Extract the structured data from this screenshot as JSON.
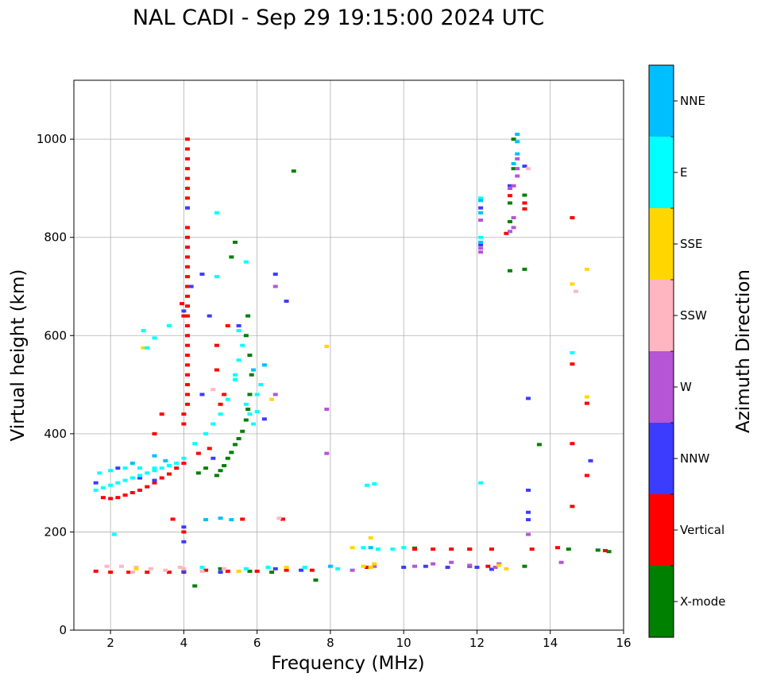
{
  "chart_data": {
    "type": "scatter",
    "title": "NAL CADI - Sep 29 19:15:00 2024 UTC",
    "xlabel": "Frequency (MHz)",
    "ylabel": "Virtual height (km)",
    "xlim": [
      1,
      16
    ],
    "ylim": [
      0,
      1120
    ],
    "xticks": [
      2,
      4,
      6,
      8,
      10,
      12,
      14,
      16
    ],
    "yticks": [
      0,
      200,
      400,
      600,
      800,
      1000
    ],
    "grid": true,
    "colorbar": {
      "label": "Azimuth Direction",
      "categories": [
        "X-mode",
        "Vertical",
        "NNW",
        "W",
        "SSW",
        "SSE",
        "E",
        "NNE"
      ],
      "colors": [
        "#008000",
        "#ff0000",
        "#3c3cff",
        "#b456d6",
        "#ffb6c1",
        "#ffd700",
        "#00ffff",
        "#00bfff"
      ]
    },
    "series": [
      {
        "name": "X-mode",
        "points": [
          [
            4.9,
            315
          ],
          [
            5.0,
            325
          ],
          [
            5.1,
            335
          ],
          [
            5.2,
            350
          ],
          [
            5.3,
            362
          ],
          [
            5.4,
            378
          ],
          [
            5.5,
            390
          ],
          [
            5.6,
            405
          ],
          [
            5.7,
            428
          ],
          [
            5.75,
            450
          ],
          [
            5.8,
            480
          ],
          [
            5.85,
            520
          ],
          [
            5.8,
            560
          ],
          [
            5.7,
            600
          ],
          [
            5.75,
            640
          ],
          [
            5.3,
            760
          ],
          [
            5.4,
            790
          ],
          [
            7.0,
            935
          ],
          [
            4.4,
            320
          ],
          [
            4.6,
            330
          ],
          [
            5.0,
            125
          ],
          [
            5.8,
            120
          ],
          [
            6.4,
            118
          ],
          [
            7.6,
            102
          ],
          [
            9.0,
            128
          ],
          [
            10.3,
            167
          ],
          [
            11.8,
            165
          ],
          [
            13.0,
            1000
          ],
          [
            13.0,
            940
          ],
          [
            12.9,
            870
          ],
          [
            12.9,
            832
          ],
          [
            13.3,
            886
          ],
          [
            12.9,
            732
          ],
          [
            13.3,
            735
          ],
          [
            13.3,
            130
          ],
          [
            13.7,
            378
          ],
          [
            14.5,
            165
          ],
          [
            15.3,
            163
          ],
          [
            15.6,
            160
          ],
          [
            4.3,
            90
          ]
        ]
      },
      {
        "name": "Vertical",
        "points": [
          [
            4.1,
            1000
          ],
          [
            4.1,
            980
          ],
          [
            4.1,
            960
          ],
          [
            4.1,
            940
          ],
          [
            4.1,
            920
          ],
          [
            4.1,
            900
          ],
          [
            4.1,
            880
          ],
          [
            4.1,
            860
          ],
          [
            4.1,
            820
          ],
          [
            4.1,
            800
          ],
          [
            4.1,
            780
          ],
          [
            4.1,
            760
          ],
          [
            4.1,
            740
          ],
          [
            4.1,
            720
          ],
          [
            4.1,
            700
          ],
          [
            4.1,
            680
          ],
          [
            4.1,
            660
          ],
          [
            4.1,
            640
          ],
          [
            4.1,
            620
          ],
          [
            4.1,
            600
          ],
          [
            4.1,
            580
          ],
          [
            4.1,
            560
          ],
          [
            4.1,
            540
          ],
          [
            4.1,
            520
          ],
          [
            4.1,
            500
          ],
          [
            4.1,
            480
          ],
          [
            4.1,
            460
          ],
          [
            4.0,
            640
          ],
          [
            3.95,
            665
          ],
          [
            4.0,
            440
          ],
          [
            4.0,
            420
          ],
          [
            4.9,
            580
          ],
          [
            5.2,
            620
          ],
          [
            4.9,
            530
          ],
          [
            5.1,
            480
          ],
          [
            5.0,
            460
          ],
          [
            3.4,
            440
          ],
          [
            3.2,
            400
          ],
          [
            4.4,
            360
          ],
          [
            4.7,
            370
          ],
          [
            1.8,
            270
          ],
          [
            2.0,
            268
          ],
          [
            2.2,
            270
          ],
          [
            2.4,
            275
          ],
          [
            2.6,
            280
          ],
          [
            2.8,
            285
          ],
          [
            3.0,
            292
          ],
          [
            3.2,
            300
          ],
          [
            3.4,
            310
          ],
          [
            3.6,
            318
          ],
          [
            3.8,
            330
          ],
          [
            4.0,
            340
          ],
          [
            1.6,
            120
          ],
          [
            2.0,
            118
          ],
          [
            2.5,
            118
          ],
          [
            3.0,
            118
          ],
          [
            3.6,
            118
          ],
          [
            4.0,
            118
          ],
          [
            4.6,
            122
          ],
          [
            5.2,
            120
          ],
          [
            6.0,
            120
          ],
          [
            6.8,
            122
          ],
          [
            7.5,
            122
          ],
          [
            9.0,
            128
          ],
          [
            10.3,
            165
          ],
          [
            10.8,
            165
          ],
          [
            11.3,
            165
          ],
          [
            11.8,
            165
          ],
          [
            12.4,
            165
          ],
          [
            12.3,
            130
          ],
          [
            12.9,
            900
          ],
          [
            12.9,
            885
          ],
          [
            13.3,
            870
          ],
          [
            13.3,
            858
          ],
          [
            12.8,
            808
          ],
          [
            14.6,
            840
          ],
          [
            14.6,
            542
          ],
          [
            14.6,
            380
          ],
          [
            14.6,
            252
          ],
          [
            15.0,
            462
          ],
          [
            15.0,
            315
          ],
          [
            14.2,
            168
          ],
          [
            15.5,
            162
          ],
          [
            13.5,
            165
          ],
          [
            4.0,
            200
          ],
          [
            3.7,
            226
          ],
          [
            5.6,
            226
          ],
          [
            6.7,
            226
          ]
        ]
      },
      {
        "name": "NNW",
        "points": [
          [
            4.1,
            860
          ],
          [
            4.2,
            700
          ],
          [
            4.0,
            650
          ],
          [
            4.7,
            640
          ],
          [
            5.5,
            620
          ],
          [
            4.5,
            480
          ],
          [
            6.2,
            430
          ],
          [
            4.8,
            350
          ],
          [
            4.0,
            180
          ],
          [
            4.0,
            210
          ],
          [
            1.6,
            300
          ],
          [
            2.2,
            330
          ],
          [
            2.8,
            310
          ],
          [
            3.2,
            305
          ],
          [
            4.0,
            120
          ],
          [
            5.0,
            118
          ],
          [
            6.5,
            125
          ],
          [
            7.2,
            122
          ],
          [
            10.0,
            128
          ],
          [
            10.6,
            130
          ],
          [
            11.2,
            128
          ],
          [
            11.8,
            130
          ],
          [
            12.0,
            128
          ],
          [
            12.4,
            124
          ],
          [
            13.4,
            285
          ],
          [
            13.4,
            240
          ],
          [
            13.4,
            225
          ],
          [
            13.4,
            472
          ],
          [
            15.1,
            345
          ],
          [
            12.1,
            860
          ],
          [
            12.1,
            785
          ],
          [
            12.9,
            905
          ],
          [
            13.3,
            945
          ],
          [
            6.8,
            670
          ],
          [
            6.5,
            725
          ],
          [
            4.5,
            725
          ]
        ]
      },
      {
        "name": "W",
        "points": [
          [
            6.5,
            700
          ],
          [
            6.5,
            480
          ],
          [
            13.1,
            960
          ],
          [
            13.1,
            940
          ],
          [
            13.1,
            925
          ],
          [
            13.0,
            905
          ],
          [
            12.9,
            900
          ],
          [
            13.0,
            840
          ],
          [
            13.0,
            820
          ],
          [
            12.9,
            812
          ],
          [
            12.1,
            770
          ],
          [
            12.1,
            778
          ],
          [
            12.1,
            835
          ],
          [
            7.9,
            450
          ],
          [
            7.9,
            360
          ],
          [
            13.4,
            195
          ],
          [
            14.3,
            138
          ],
          [
            10.3,
            130
          ],
          [
            10.8,
            135
          ],
          [
            11.3,
            138
          ],
          [
            11.8,
            132
          ],
          [
            12.5,
            128
          ],
          [
            12.6,
            135
          ],
          [
            9.2,
            130
          ],
          [
            8.6,
            122
          ]
        ]
      },
      {
        "name": "SSW",
        "points": [
          [
            6.6,
            228
          ],
          [
            4.8,
            490
          ],
          [
            14.7,
            690
          ],
          [
            13.4,
            940
          ],
          [
            1.9,
            130
          ],
          [
            2.3,
            130
          ],
          [
            2.7,
            128
          ],
          [
            3.1,
            125
          ],
          [
            3.5,
            122
          ],
          [
            4.0,
            125
          ],
          [
            4.5,
            120
          ],
          [
            5.1,
            125
          ],
          [
            2.6,
            118
          ],
          [
            3.9,
            128
          ]
        ]
      },
      {
        "name": "SSE",
        "points": [
          [
            14.6,
            705
          ],
          [
            15.0,
            735
          ],
          [
            15.0,
            475
          ],
          [
            8.9,
            130
          ],
          [
            9.1,
            128
          ],
          [
            9.2,
            135
          ],
          [
            9.1,
            188
          ],
          [
            8.6,
            168
          ],
          [
            7.9,
            578
          ],
          [
            2.9,
            575
          ],
          [
            6.4,
            470
          ],
          [
            2.7,
            125
          ],
          [
            5.5,
            120
          ],
          [
            6.8,
            128
          ],
          [
            12.6,
            132
          ],
          [
            12.8,
            125
          ]
        ]
      },
      {
        "name": "E",
        "points": [
          [
            1.6,
            285
          ],
          [
            1.8,
            290
          ],
          [
            2.0,
            295
          ],
          [
            2.2,
            300
          ],
          [
            2.4,
            305
          ],
          [
            2.6,
            310
          ],
          [
            2.8,
            315
          ],
          [
            3.0,
            320
          ],
          [
            3.2,
            325
          ],
          [
            3.4,
            330
          ],
          [
            3.6,
            335
          ],
          [
            3.8,
            340
          ],
          [
            1.7,
            320
          ],
          [
            2.0,
            325
          ],
          [
            2.4,
            330
          ],
          [
            2.8,
            330
          ],
          [
            3.2,
            330
          ],
          [
            4.0,
            350
          ],
          [
            4.3,
            380
          ],
          [
            4.6,
            400
          ],
          [
            4.8,
            420
          ],
          [
            5.0,
            440
          ],
          [
            5.2,
            470
          ],
          [
            5.4,
            510
          ],
          [
            5.5,
            550
          ],
          [
            5.6,
            580
          ],
          [
            5.4,
            520
          ],
          [
            5.7,
            460
          ],
          [
            5.8,
            440
          ],
          [
            5.9,
            420
          ],
          [
            6.0,
            445
          ],
          [
            4.9,
            720
          ],
          [
            4.9,
            850
          ],
          [
            5.7,
            750
          ],
          [
            5.5,
            610
          ],
          [
            3.2,
            595
          ],
          [
            3.0,
            575
          ],
          [
            2.9,
            610
          ],
          [
            3.6,
            620
          ],
          [
            6.2,
            540
          ],
          [
            6.1,
            500
          ],
          [
            6.0,
            480
          ],
          [
            9.0,
            295
          ],
          [
            9.2,
            298
          ],
          [
            12.1,
            300
          ],
          [
            12.1,
            800
          ],
          [
            12.1,
            880
          ],
          [
            14.6,
            565
          ],
          [
            8.2,
            125
          ],
          [
            8.9,
            168
          ],
          [
            9.3,
            165
          ],
          [
            9.7,
            165
          ],
          [
            10.0,
            168
          ],
          [
            2.1,
            195
          ],
          [
            4.5,
            128
          ],
          [
            5.7,
            125
          ],
          [
            6.3,
            128
          ],
          [
            7.3,
            128
          ]
        ]
      },
      {
        "name": "NNE",
        "points": [
          [
            13.1,
            1010
          ],
          [
            13.1,
            995
          ],
          [
            13.1,
            970
          ],
          [
            13.0,
            950
          ],
          [
            12.1,
            875
          ],
          [
            12.1,
            850
          ],
          [
            12.1,
            790
          ],
          [
            9.1,
            168
          ],
          [
            8.0,
            130
          ],
          [
            4.6,
            225
          ],
          [
            3.5,
            345
          ],
          [
            3.2,
            355
          ],
          [
            2.6,
            340
          ],
          [
            6.2,
            540
          ],
          [
            5.9,
            530
          ],
          [
            5.3,
            225
          ],
          [
            5.0,
            228
          ]
        ]
      }
    ]
  }
}
